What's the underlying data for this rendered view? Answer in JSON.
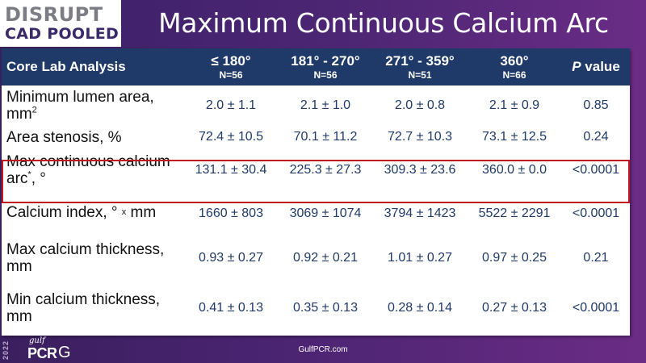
{
  "header": {
    "logo_line1": "DISRUPT",
    "logo_line2": "CAD POOLED",
    "title": "Maximum Continuous Calcium Arc"
  },
  "table": {
    "columns": [
      {
        "main": "Core Lab Analysis",
        "sub": ""
      },
      {
        "main": "≤ 180°",
        "sub": "N=56"
      },
      {
        "main": "181° - 270°",
        "sub": "N=56"
      },
      {
        "main": "271° - 359°",
        "sub": "N=51"
      },
      {
        "main": "360°",
        "sub": "N=66"
      },
      {
        "main": "value",
        "prefix": "P"
      }
    ],
    "rows": [
      {
        "label": "Minimum lumen area, mm",
        "label_sup": "2",
        "values": [
          "2.0 ± 1.1",
          "2.1 ± 1.0",
          "2.0 ± 0.8",
          "2.1 ± 0.9",
          "0.85"
        ]
      },
      {
        "label": "Area stenosis, %",
        "values": [
          "72.4 ± 10.5",
          "70.1 ± 11.2",
          "72.7 ± 10.3",
          "73.1 ± 12.5",
          "0.24"
        ]
      },
      {
        "label": "Max continuous calcium arc",
        "label_sup": "*",
        "label_tail": ", °",
        "values": [
          "131.1 ± 30.4",
          "225.3 ± 27.3",
          "309.3 ± 23.6",
          "360.0 ± 0.0",
          "<0.0001"
        ]
      },
      {
        "label": "Calcium index, °",
        "label_x": "x",
        "label_tail": " mm",
        "values": [
          "1660 ± 803",
          "3069 ± 1074",
          "3794 ± 1423",
          "5522 ± 2291",
          "<0.0001"
        ]
      },
      {
        "label": "Max calcium thickness, mm",
        "values": [
          "0.93 ± 0.27",
          "0.92 ± 0.21",
          "1.01 ± 0.27",
          "0.97 ± 0.25",
          "0.21"
        ]
      },
      {
        "label": "Min calcium thickness, mm",
        "values": [
          "0.41 ± 0.13",
          "0.35 ± 0.13",
          "0.28 ± 0.14",
          "0.27 ± 0.13",
          "<0.0001"
        ]
      }
    ]
  },
  "footer": {
    "year": "2022",
    "brand_small": "gulf",
    "brand_main": "PCR",
    "brand_suffix": "G",
    "url": "GulfPCR.com"
  },
  "colors": {
    "header_bg": "#4b2472",
    "table_header_bg": "#1f3a68",
    "highlight_border": "#c4191f",
    "value_text": "#1f3a68"
  }
}
